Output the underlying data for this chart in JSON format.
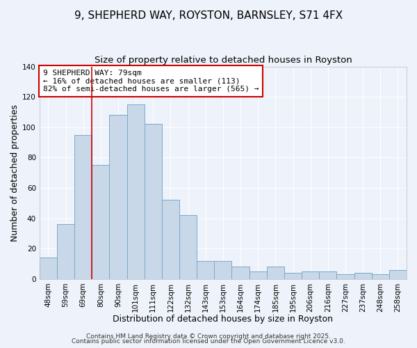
{
  "title": "9, SHEPHERD WAY, ROYSTON, BARNSLEY, S71 4FX",
  "subtitle": "Size of property relative to detached houses in Royston",
  "xlabel": "Distribution of detached houses by size in Royston",
  "ylabel": "Number of detached properties",
  "categories": [
    "48sqm",
    "59sqm",
    "69sqm",
    "80sqm",
    "90sqm",
    "101sqm",
    "111sqm",
    "122sqm",
    "132sqm",
    "143sqm",
    "153sqm",
    "164sqm",
    "174sqm",
    "185sqm",
    "195sqm",
    "206sqm",
    "216sqm",
    "227sqm",
    "237sqm",
    "248sqm",
    "258sqm"
  ],
  "values": [
    14,
    36,
    95,
    75,
    108,
    115,
    102,
    52,
    42,
    12,
    12,
    8,
    5,
    8,
    4,
    5,
    5,
    3,
    4,
    3,
    6
  ],
  "bar_color": "#c8d8e8",
  "bar_edge_color": "#7aaac8",
  "vline_x_index": 3,
  "vline_color": "#cc0000",
  "annotation_text": "9 SHEPHERD WAY: 79sqm\n← 16% of detached houses are smaller (113)\n82% of semi-detached houses are larger (565) →",
  "annotation_box_color": "#ffffff",
  "annotation_box_edge_color": "#cc0000",
  "ylim": [
    0,
    140
  ],
  "yticks": [
    0,
    20,
    40,
    60,
    80,
    100,
    120,
    140
  ],
  "background_color": "#eef2fa",
  "grid_color": "#ffffff",
  "footer_line1": "Contains HM Land Registry data © Crown copyright and database right 2025.",
  "footer_line2": "Contains public sector information licensed under the Open Government Licence v3.0.",
  "title_fontsize": 11,
  "subtitle_fontsize": 9.5,
  "axis_label_fontsize": 9,
  "tick_fontsize": 7.5,
  "annotation_fontsize": 8,
  "footer_fontsize": 6.5
}
